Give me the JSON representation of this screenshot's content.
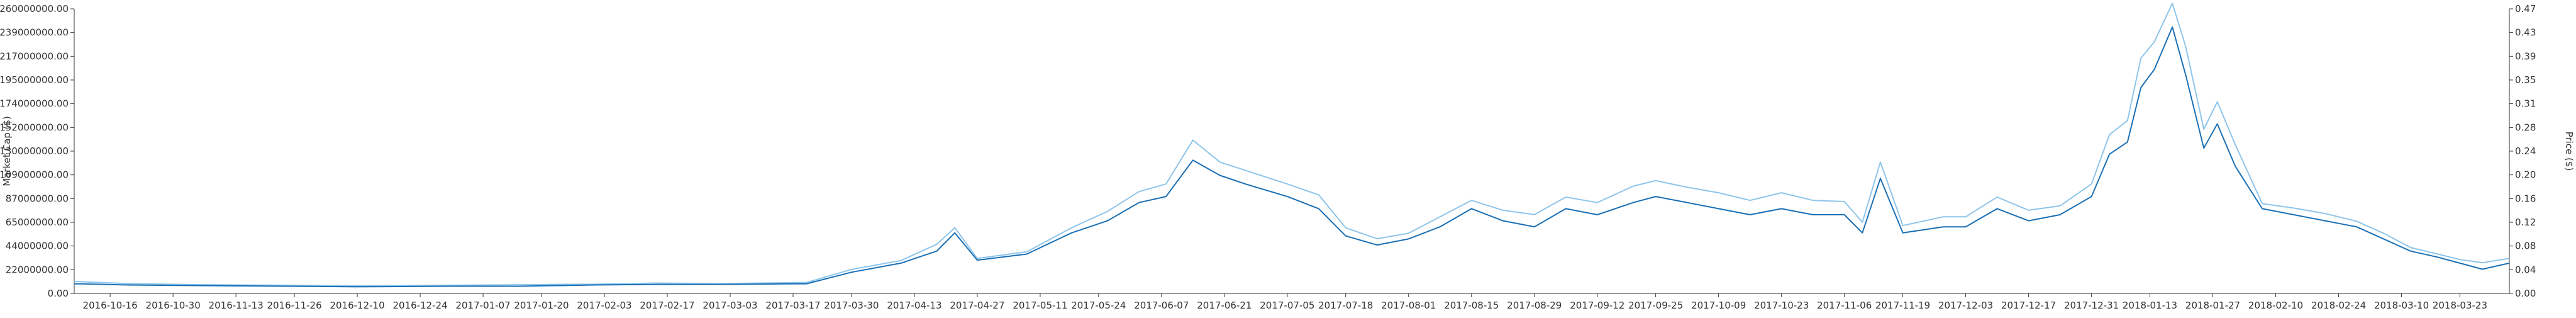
{
  "chart_data": {
    "type": "line",
    "title": "",
    "xlabel": "",
    "y_left_label": "Market Cap ($)",
    "y_right_label": "Price ($)",
    "colors": {
      "price": "#1a6fb5",
      "market_cap": "#8ec5ea",
      "axis": "#333333"
    },
    "grid": false,
    "x_range": [
      "2016-10-08",
      "2018-04-03"
    ],
    "y_left_range": [
      0,
      260000000
    ],
    "y_right_range": [
      0,
      0.47
    ],
    "y_left_ticks": [
      "0.00",
      "22000000.00",
      "44000000.00",
      "65000000.00",
      "87000000.00",
      "109000000.00",
      "130000000.00",
      "152000000.00",
      "174000000.00",
      "195000000.00",
      "217000000.00",
      "239000000.00",
      "260000000.00"
    ],
    "y_right_ticks": [
      "0.00",
      "0.04",
      "0.08",
      "0.12",
      "0.16",
      "0.20",
      "0.24",
      "0.28",
      "0.31",
      "0.35",
      "0.39",
      "0.43",
      "0.47"
    ],
    "x_ticks": [
      "2016-10-16",
      "2016-10-30",
      "2016-11-13",
      "2016-11-26",
      "2016-12-10",
      "2016-12-24",
      "2017-01-07",
      "2017-01-20",
      "2017-02-03",
      "2017-02-17",
      "2017-03-03",
      "2017-03-17",
      "2017-03-30",
      "2017-04-13",
      "2017-04-27",
      "2017-05-11",
      "2017-05-24",
      "2017-06-07",
      "2017-06-21",
      "2017-07-05",
      "2017-07-18",
      "2017-08-01",
      "2017-08-15",
      "2017-08-29",
      "2017-09-12",
      "2017-09-25",
      "2017-10-09",
      "2017-10-23",
      "2017-11-06",
      "2017-11-19",
      "2017-12-03",
      "2017-12-17",
      "2017-12-31",
      "2018-01-13",
      "2018-01-27",
      "2018-02-10",
      "2018-02-24",
      "2018-03-10",
      "2018-03-23"
    ],
    "series": [
      {
        "name": "Price",
        "axis": "right",
        "x": [
          "2016-10-08",
          "2016-10-20",
          "2016-11-05",
          "2016-11-25",
          "2016-12-10",
          "2016-12-30",
          "2017-01-15",
          "2017-02-01",
          "2017-02-15",
          "2017-03-01",
          "2017-03-20",
          "2017-03-30",
          "2017-04-10",
          "2017-04-18",
          "2017-04-22",
          "2017-04-27",
          "2017-05-08",
          "2017-05-18",
          "2017-05-26",
          "2017-06-02",
          "2017-06-08",
          "2017-06-14",
          "2017-06-20",
          "2017-06-26",
          "2017-07-05",
          "2017-07-12",
          "2017-07-18",
          "2017-07-25",
          "2017-08-01",
          "2017-08-08",
          "2017-08-15",
          "2017-08-22",
          "2017-08-29",
          "2017-09-05",
          "2017-09-12",
          "2017-09-20",
          "2017-09-25",
          "2017-10-02",
          "2017-10-09",
          "2017-10-16",
          "2017-10-23",
          "2017-10-30",
          "2017-11-06",
          "2017-11-10",
          "2017-11-14",
          "2017-11-19",
          "2017-11-28",
          "2017-12-03",
          "2017-12-10",
          "2017-12-17",
          "2017-12-24",
          "2017-12-31",
          "2018-01-04",
          "2018-01-08",
          "2018-01-11",
          "2018-01-14",
          "2018-01-18",
          "2018-01-21",
          "2018-01-25",
          "2018-01-28",
          "2018-02-01",
          "2018-02-07",
          "2018-02-14",
          "2018-02-21",
          "2018-02-28",
          "2018-03-06",
          "2018-03-12",
          "2018-03-18",
          "2018-03-23",
          "2018-03-28",
          "2018-04-03"
        ],
        "values": [
          0.016,
          0.014,
          0.013,
          0.012,
          0.011,
          0.012,
          0.012,
          0.014,
          0.015,
          0.015,
          0.016,
          0.035,
          0.05,
          0.07,
          0.1,
          0.055,
          0.065,
          0.1,
          0.12,
          0.15,
          0.16,
          0.22,
          0.195,
          0.18,
          0.16,
          0.14,
          0.095,
          0.08,
          0.09,
          0.11,
          0.14,
          0.12,
          0.11,
          0.14,
          0.13,
          0.15,
          0.16,
          0.15,
          0.14,
          0.13,
          0.14,
          0.13,
          0.13,
          0.1,
          0.19,
          0.1,
          0.11,
          0.11,
          0.14,
          0.12,
          0.13,
          0.16,
          0.23,
          0.25,
          0.34,
          0.37,
          0.44,
          0.36,
          0.24,
          0.28,
          0.21,
          0.14,
          0.13,
          0.12,
          0.11,
          0.09,
          0.07,
          0.06,
          0.05,
          0.04,
          0.05
        ]
      },
      {
        "name": "Market Cap",
        "axis": "left",
        "x": [
          "2016-10-08",
          "2016-10-20",
          "2016-11-05",
          "2016-11-25",
          "2016-12-10",
          "2016-12-30",
          "2017-01-15",
          "2017-02-01",
          "2017-02-15",
          "2017-03-01",
          "2017-03-20",
          "2017-03-30",
          "2017-04-10",
          "2017-04-18",
          "2017-04-22",
          "2017-04-27",
          "2017-05-08",
          "2017-05-18",
          "2017-05-26",
          "2017-06-02",
          "2017-06-08",
          "2017-06-14",
          "2017-06-20",
          "2017-06-26",
          "2017-07-05",
          "2017-07-12",
          "2017-07-18",
          "2017-07-25",
          "2017-08-01",
          "2017-08-08",
          "2017-08-15",
          "2017-08-22",
          "2017-08-29",
          "2017-09-05",
          "2017-09-12",
          "2017-09-20",
          "2017-09-25",
          "2017-10-02",
          "2017-10-09",
          "2017-10-16",
          "2017-10-23",
          "2017-10-30",
          "2017-11-06",
          "2017-11-10",
          "2017-11-14",
          "2017-11-19",
          "2017-11-28",
          "2017-12-03",
          "2017-12-10",
          "2017-12-17",
          "2017-12-24",
          "2017-12-31",
          "2018-01-04",
          "2018-01-08",
          "2018-01-11",
          "2018-01-14",
          "2018-01-18",
          "2018-01-21",
          "2018-01-25",
          "2018-01-28",
          "2018-02-01",
          "2018-02-07",
          "2018-02-14",
          "2018-02-21",
          "2018-02-28",
          "2018-03-06",
          "2018-03-12",
          "2018-03-18",
          "2018-03-23",
          "2018-03-28",
          "2018-04-03"
        ],
        "values": [
          11000000,
          9000000,
          8000000,
          7500000,
          7000000,
          7500000,
          8000000,
          8500000,
          9500000,
          9000000,
          10000000,
          22000000,
          30000000,
          45000000,
          60000000,
          32000000,
          38000000,
          60000000,
          75000000,
          93000000,
          100000000,
          140000000,
          120000000,
          112000000,
          100000000,
          90000000,
          60000000,
          50000000,
          55000000,
          70000000,
          85000000,
          76000000,
          72000000,
          88000000,
          83000000,
          98000000,
          103000000,
          97000000,
          92000000,
          85000000,
          92000000,
          85000000,
          84000000,
          65000000,
          120000000,
          62000000,
          70000000,
          70000000,
          88000000,
          76000000,
          80000000,
          100000000,
          145000000,
          158000000,
          215000000,
          230000000,
          265000000,
          225000000,
          150000000,
          175000000,
          136000000,
          82000000,
          78000000,
          73000000,
          66000000,
          55000000,
          42000000,
          36000000,
          31000000,
          28000000,
          32000000
        ]
      }
    ]
  }
}
